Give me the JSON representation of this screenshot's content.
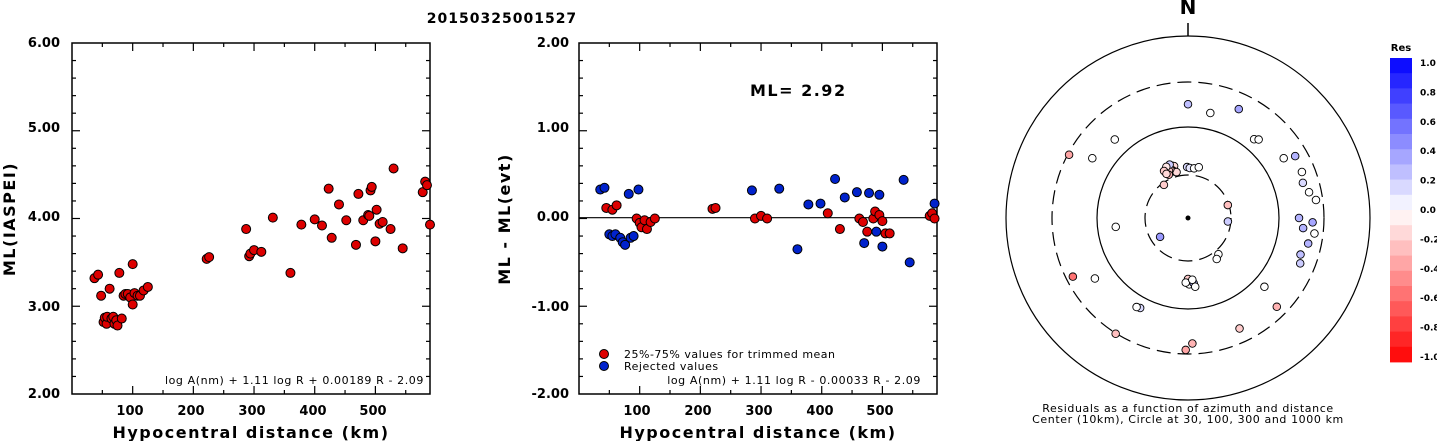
{
  "title": "20150325001527",
  "chart_data": [
    {
      "type": "scatter",
      "xlabel": "Hypocentral distance (km)",
      "ylabel": "ML(IASPEI)",
      "xlim": [
        0,
        590
      ],
      "ylim": [
        2.0,
        6.0
      ],
      "xticks": [
        "100",
        "200",
        "300",
        "400",
        "500"
      ],
      "yticks": [
        "2.00",
        "3.00",
        "4.00",
        "5.00",
        "6.00"
      ],
      "formula": "log A(nm) + 1.11 log R + 0.00189 R - 2.09",
      "point_color": "#dd0000",
      "points": [
        [
          37,
          3.32
        ],
        [
          43,
          3.36
        ],
        [
          48,
          3.12
        ],
        [
          52,
          2.82
        ],
        [
          54,
          2.87
        ],
        [
          57,
          2.8
        ],
        [
          58,
          2.88
        ],
        [
          62,
          3.2
        ],
        [
          65,
          2.86
        ],
        [
          68,
          2.88
        ],
        [
          70,
          2.8
        ],
        [
          73,
          2.84
        ],
        [
          75,
          2.78
        ],
        [
          78,
          3.38
        ],
        [
          82,
          2.86
        ],
        [
          85,
          3.12
        ],
        [
          88,
          3.14
        ],
        [
          92,
          3.14
        ],
        [
          96,
          3.1
        ],
        [
          100,
          3.48
        ],
        [
          100,
          3.02
        ],
        [
          103,
          3.15
        ],
        [
          108,
          3.12
        ],
        [
          112,
          3.12
        ],
        [
          118,
          3.18
        ],
        [
          125,
          3.22
        ],
        [
          222,
          3.54
        ],
        [
          226,
          3.56
        ],
        [
          287,
          3.88
        ],
        [
          292,
          3.57
        ],
        [
          294,
          3.6
        ],
        [
          300,
          3.64
        ],
        [
          312,
          3.62
        ],
        [
          331,
          4.01
        ],
        [
          360,
          3.38
        ],
        [
          378,
          3.93
        ],
        [
          400,
          3.99
        ],
        [
          412,
          3.92
        ],
        [
          423,
          4.34
        ],
        [
          428,
          3.78
        ],
        [
          440,
          4.16
        ],
        [
          452,
          3.98
        ],
        [
          468,
          3.7
        ],
        [
          472,
          4.28
        ],
        [
          480,
          3.98
        ],
        [
          488,
          4.04
        ],
        [
          490,
          4.03
        ],
        [
          492,
          4.32
        ],
        [
          494,
          4.36
        ],
        [
          500,
          3.74
        ],
        [
          502,
          4.1
        ],
        [
          507,
          3.94
        ],
        [
          512,
          3.96
        ],
        [
          525,
          3.88
        ],
        [
          530,
          4.57
        ],
        [
          545,
          3.66
        ],
        [
          578,
          4.3
        ],
        [
          582,
          4.42
        ],
        [
          585,
          4.38
        ],
        [
          590,
          3.93
        ]
      ]
    },
    {
      "type": "scatter",
      "xlabel": "Hypocentral distance (km)",
      "ylabel": "ML - ML(evt)",
      "xlim": [
        0,
        590
      ],
      "ylim": [
        -2.0,
        2.0
      ],
      "xticks": [
        "100",
        "200",
        "300",
        "400",
        "500"
      ],
      "yticks": [
        "-2.00",
        "-1.00",
        "0.00",
        "1.00",
        "2.00"
      ],
      "annotation": "ML= 2.92",
      "formula": "log A(nm) + 1.11 log R - 0.00033 R - 2.09",
      "legend": [
        {
          "label": "25%-75% values for trimmed mean",
          "color": "#dd0000"
        },
        {
          "label": "Rejected values",
          "color": "#0022cc"
        }
      ],
      "points_trimmed": [
        [
          45,
          0.12
        ],
        [
          55,
          0.1
        ],
        [
          62,
          0.15
        ],
        [
          95,
          0.0
        ],
        [
          100,
          -0.05
        ],
        [
          103,
          -0.1
        ],
        [
          108,
          -0.02
        ],
        [
          112,
          -0.12
        ],
        [
          118,
          -0.04
        ],
        [
          125,
          0.0
        ],
        [
          220,
          0.11
        ],
        [
          225,
          0.12
        ],
        [
          290,
          0.0
        ],
        [
          300,
          0.03
        ],
        [
          310,
          0.0
        ],
        [
          410,
          0.06
        ],
        [
          430,
          -0.12
        ],
        [
          462,
          0.0
        ],
        [
          468,
          -0.04
        ],
        [
          475,
          -0.15
        ],
        [
          485,
          0.0
        ],
        [
          488,
          0.08
        ],
        [
          495,
          0.04
        ],
        [
          500,
          -0.03
        ],
        [
          505,
          -0.17
        ],
        [
          512,
          -0.17
        ],
        [
          578,
          0.03
        ],
        [
          582,
          0.06
        ],
        [
          586,
          0.0
        ]
      ],
      "points_rejected": [
        [
          35,
          0.33
        ],
        [
          42,
          0.35
        ],
        [
          50,
          -0.18
        ],
        [
          55,
          -0.2
        ],
        [
          60,
          -0.18
        ],
        [
          68,
          -0.22
        ],
        [
          72,
          -0.27
        ],
        [
          76,
          -0.3
        ],
        [
          82,
          0.28
        ],
        [
          85,
          -0.22
        ],
        [
          90,
          -0.2
        ],
        [
          98,
          0.33
        ],
        [
          285,
          0.32
        ],
        [
          330,
          0.34
        ],
        [
          360,
          -0.35
        ],
        [
          378,
          0.16
        ],
        [
          398,
          0.17
        ],
        [
          422,
          0.45
        ],
        [
          438,
          0.24
        ],
        [
          458,
          0.3
        ],
        [
          470,
          -0.28
        ],
        [
          478,
          0.29
        ],
        [
          490,
          -0.15
        ],
        [
          495,
          0.27
        ],
        [
          500,
          -0.32
        ],
        [
          535,
          0.44
        ],
        [
          545,
          -0.5
        ],
        [
          586,
          0.17
        ]
      ]
    },
    {
      "type": "scatter",
      "subtype": "polar residual map",
      "north_label": "N",
      "caption_line1": "Residuals as a function of azimuth and distance",
      "caption_line2": "Center (10km), Circle at 30, 100, 300 and 1000 km",
      "colorbar_title": "Res",
      "colorbar_ticks": [
        "1.0",
        "0.8",
        "0.6",
        "0.4",
        "0.2",
        "0.0",
        "-0.2",
        "-0.4",
        "-0.6",
        "-0.8",
        "-1.0"
      ],
      "rings_km": [
        30,
        100,
        300,
        1000
      ],
      "stations": [
        {
          "az": -17,
          "r": 0.6,
          "res": -0.1
        },
        {
          "az": -15,
          "r": 0.59,
          "res": -0.15
        },
        {
          "az": -18,
          "r": 0.55,
          "res": -0.2
        },
        {
          "az": -16,
          "r": 0.53,
          "res": -0.3
        },
        {
          "az": -14,
          "r": 0.52,
          "res": -0.15
        },
        {
          "az": -20,
          "r": 0.57,
          "res": -0.25
        },
        {
          "az": -22,
          "r": 0.56,
          "res": -0.2
        },
        {
          "az": -24,
          "r": 0.52,
          "res": -0.3
        },
        {
          "az": -19,
          "r": 0.62,
          "res": 0.2
        },
        {
          "az": -23,
          "r": 0.61,
          "res": -0.1
        },
        {
          "az": -27,
          "r": 0.58,
          "res": -0.2
        },
        {
          "az": -26,
          "r": 0.54,
          "res": -0.15
        },
        {
          "az": -36,
          "r": 0.45,
          "res": -0.2
        },
        {
          "az": -1,
          "r": 0.56,
          "res": 0.15
        },
        {
          "az": 2,
          "r": 0.55,
          "res": 0.1
        },
        {
          "az": 7,
          "r": 0.55,
          "res": 0.0
        },
        {
          "az": 12,
          "r": 0.57,
          "res": 0.0
        },
        {
          "az": 72,
          "r": 0.46,
          "res": -0.25
        },
        {
          "az": 95,
          "r": 0.44,
          "res": 0.2
        },
        {
          "az": 140,
          "r": 0.52,
          "res": 0.0
        },
        {
          "az": 145,
          "r": 0.55,
          "res": 0.0
        },
        {
          "az": 180,
          "r": 0.67,
          "res": -0.2
        },
        {
          "az": 179,
          "r": 0.73,
          "res": 0.0
        },
        {
          "az": 175,
          "r": 0.72,
          "res": 0.3
        },
        {
          "az": 182,
          "r": 0.71,
          "res": 0.0
        },
        {
          "az": 174,
          "r": 0.76,
          "res": 0.0
        },
        {
          "az": 176,
          "r": 0.68,
          "res": 0.0
        },
        {
          "az": 236,
          "r": 0.37,
          "res": 0.4
        },
        {
          "az": 263,
          "r": 0.8,
          "res": 0.0
        },
        {
          "az": 0,
          "r": 1.25,
          "res": 0.25
        },
        {
          "az": 12,
          "r": 1.18,
          "res": 0.0
        },
        {
          "az": 25,
          "r": 1.32,
          "res": 0.35
        },
        {
          "az": 40,
          "r": 1.13,
          "res": 0.0
        },
        {
          "az": 42,
          "r": 1.16,
          "res": 0.0
        },
        {
          "az": 58,
          "r": 1.24,
          "res": 0.0
        },
        {
          "az": 60,
          "r": 1.36,
          "res": 0.3
        },
        {
          "az": 68,
          "r": 1.35,
          "res": 0.0
        },
        {
          "az": 73,
          "r": 1.32,
          "res": 0.15
        },
        {
          "az": 78,
          "r": 1.36,
          "res": 0.0
        },
        {
          "az": 82,
          "r": 1.42,
          "res": 0.0
        },
        {
          "az": 90,
          "r": 1.22,
          "res": 0.3
        },
        {
          "az": 92,
          "r": 1.37,
          "res": 0.35
        },
        {
          "az": 95,
          "r": 1.27,
          "res": 0.3
        },
        {
          "az": 97,
          "r": 1.4,
          "res": 0.0
        },
        {
          "az": 102,
          "r": 1.35,
          "res": 0.3
        },
        {
          "az": 108,
          "r": 1.3,
          "res": 0.25
        },
        {
          "az": 112,
          "r": 1.33,
          "res": 0.2
        },
        {
          "az": 132,
          "r": 1.13,
          "res": 0.0
        },
        {
          "az": 135,
          "r": 1.38,
          "res": -0.3
        },
        {
          "az": 155,
          "r": 1.34,
          "res": -0.2
        },
        {
          "az": 178,
          "r": 1.38,
          "res": -0.3
        },
        {
          "az": 181,
          "r": 1.45,
          "res": -0.35
        },
        {
          "az": 208,
          "r": 1.12,
          "res": 0.15
        },
        {
          "az": 210,
          "r": 1.13,
          "res": 0.0
        },
        {
          "az": 212,
          "r": 1.5,
          "res": -0.25
        },
        {
          "az": 237,
          "r": 1.22,
          "res": 0.0
        },
        {
          "az": 243,
          "r": 1.42,
          "res": -0.55
        },
        {
          "az": 302,
          "r": 1.24,
          "res": 0.0
        },
        {
          "az": 317,
          "r": 1.18,
          "res": 0.0
        },
        {
          "az": 298,
          "r": 1.48,
          "res": -0.35
        }
      ]
    }
  ]
}
